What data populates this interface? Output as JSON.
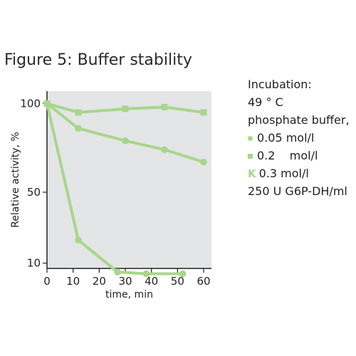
{
  "figure_title": "Figure 5: Buffer stability",
  "legend": {
    "header_lines": [
      "Incubation:",
      "49 ° C",
      "phosphate buffer,"
    ],
    "entries": [
      {
        "marker": "circle",
        "label": "0.05 mol/l"
      },
      {
        "marker": "square",
        "label": "0.2    mol/l"
      },
      {
        "marker": "k-glyph",
        "glyph": "K",
        "label": "0.3 mol/l"
      }
    ],
    "footer": "250 U G6P-DH/ml"
  },
  "colors": {
    "series": "#a8d68c",
    "plot_bg": "#e4e5e7",
    "axis": "#222222"
  },
  "chart_data": {
    "type": "line",
    "title": "Figure 5: Buffer stability",
    "xlabel": "time, min",
    "ylabel": "Relative activity, %",
    "xlim": [
      0,
      63
    ],
    "ylim": [
      7,
      107
    ],
    "x_ticks": [
      "0",
      "10",
      "20",
      "30",
      "40",
      "50",
      "60"
    ],
    "x_tick_values": [
      0,
      10,
      20,
      30,
      40,
      50,
      60
    ],
    "y_ticks": [
      "10",
      "50",
      "100"
    ],
    "y_tick_values": [
      10,
      50,
      100
    ],
    "grid": false,
    "legend_position": "right",
    "series": [
      {
        "name": "0.05 mol/l",
        "marker": "circle",
        "x": [
          0,
          12,
          30,
          45,
          60
        ],
        "y": [
          100,
          86,
          79,
          74,
          67
        ]
      },
      {
        "name": "0.2    mol/l",
        "marker": "square",
        "x": [
          0,
          12,
          30,
          45,
          60
        ],
        "y": [
          100,
          95,
          97,
          98,
          95
        ]
      },
      {
        "name": "0.3 mol/l",
        "marker": "k-glyph",
        "x": [
          0,
          12,
          27,
          38,
          52
        ],
        "y": [
          100,
          23,
          5,
          4,
          4
        ]
      }
    ]
  }
}
